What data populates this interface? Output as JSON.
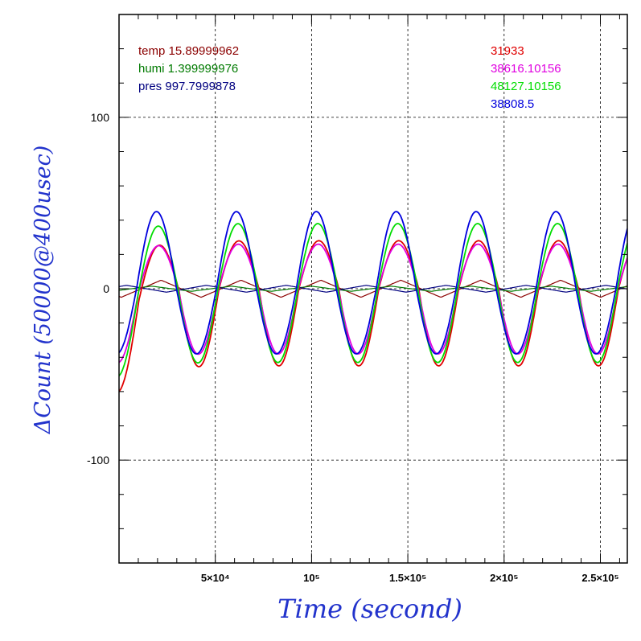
{
  "chart_data": {
    "type": "line",
    "xlabel": "Time (second)",
    "ylabel": "ΔCount (50000@400usec)",
    "xlim": [
      0,
      264000
    ],
    "ylim": [
      -160,
      160
    ],
    "x_ticks": [
      {
        "value": 50000,
        "label": "5×10⁴"
      },
      {
        "value": 100000,
        "label": "10⁵"
      },
      {
        "value": 150000,
        "label": "1.5×10⁵"
      },
      {
        "value": 200000,
        "label": "2×10⁵"
      },
      {
        "value": 250000,
        "label": "2.5×10⁵"
      }
    ],
    "y_ticks": [
      {
        "value": 100,
        "label": "100"
      },
      {
        "value": 0,
        "label": "0"
      },
      {
        "value": -100,
        "label": "-100"
      }
    ],
    "grid": true,
    "legend_left": [
      {
        "text": "temp 15.89999962",
        "color": "#8b0000"
      },
      {
        "text": "humi 1.399999976",
        "color": "#007a00"
      },
      {
        "text": "pres 997.7999878",
        "color": "#000080"
      }
    ],
    "legend_right": [
      {
        "text": "31933",
        "color": "#e00000"
      },
      {
        "text": "38616.10156",
        "color": "#e000e0"
      },
      {
        "text": "48127.10156",
        "color": "#00dd00"
      },
      {
        "text": "38808.5",
        "color": "#0000dd"
      }
    ],
    "period": 41500,
    "phase_offset": 1500,
    "series": [
      {
        "color": "#e00000",
        "amp_pos": 28,
        "amp_neg": 45,
        "shift": 500,
        "start_offset": -15
      },
      {
        "color": "#e000e0",
        "amp_pos": 26,
        "amp_neg": 38,
        "shift": 200,
        "start_offset": -5
      },
      {
        "color": "#00dd00",
        "amp_pos": 38,
        "amp_neg": 43,
        "shift": 0,
        "start_offset": -8
      },
      {
        "color": "#0000dd",
        "amp_pos": 45,
        "amp_neg": 38,
        "shift": -800,
        "start_offset": 0
      }
    ],
    "env_series": [
      {
        "color": "#8b0000",
        "amp": 5,
        "shift": 10000
      },
      {
        "color": "#007a00",
        "amp": 1.5,
        "shift": 5000
      },
      {
        "color": "#000080",
        "amp": 2,
        "shift": -8000
      }
    ]
  }
}
